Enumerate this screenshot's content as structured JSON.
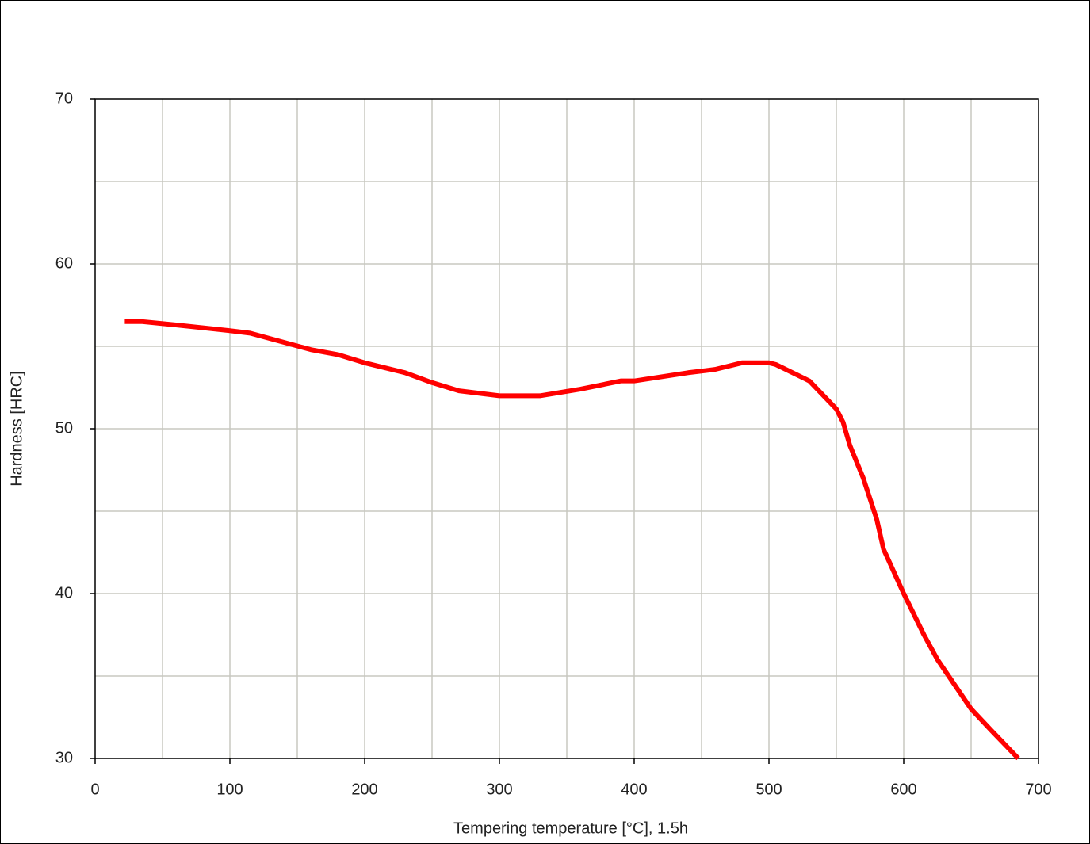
{
  "chart_data": {
    "type": "line",
    "x_label": "Tempering temperature [°C], 1.5h",
    "y_label": "Hardness [HRC]",
    "xlim": [
      0,
      700
    ],
    "xticks": [
      0,
      100,
      200,
      300,
      400,
      500,
      600,
      700
    ],
    "ylim": [
      30,
      70
    ],
    "yticks": [
      30,
      40,
      50,
      60,
      70
    ],
    "xgrid": [
      50,
      100,
      150,
      200,
      250,
      300,
      350,
      400,
      450,
      500,
      550,
      600,
      650
    ],
    "ygrid": [
      35,
      40,
      45,
      50,
      55,
      60,
      65
    ],
    "grid": true,
    "series": [
      {
        "color": "#ff0000",
        "x": [
          22,
          35,
          60,
          100,
          115,
          160,
          180,
          200,
          230,
          250,
          270,
          300,
          330,
          360,
          390,
          400,
          440,
          460,
          480,
          500,
          505,
          530,
          550,
          555,
          560,
          570,
          580,
          585,
          600,
          615,
          625,
          640,
          650,
          665,
          685
        ],
        "values": [
          56.5,
          56.5,
          56.3,
          55.95,
          55.8,
          54.8,
          54.5,
          54.0,
          53.4,
          52.8,
          52.3,
          52.0,
          52.0,
          52.4,
          52.9,
          52.9,
          53.4,
          53.6,
          54.0,
          54.0,
          53.9,
          52.9,
          51.2,
          50.4,
          49.0,
          47.0,
          44.5,
          42.7,
          40.0,
          37.5,
          36.0,
          34.2,
          33.0,
          31.7,
          30.0
        ]
      }
    ]
  }
}
